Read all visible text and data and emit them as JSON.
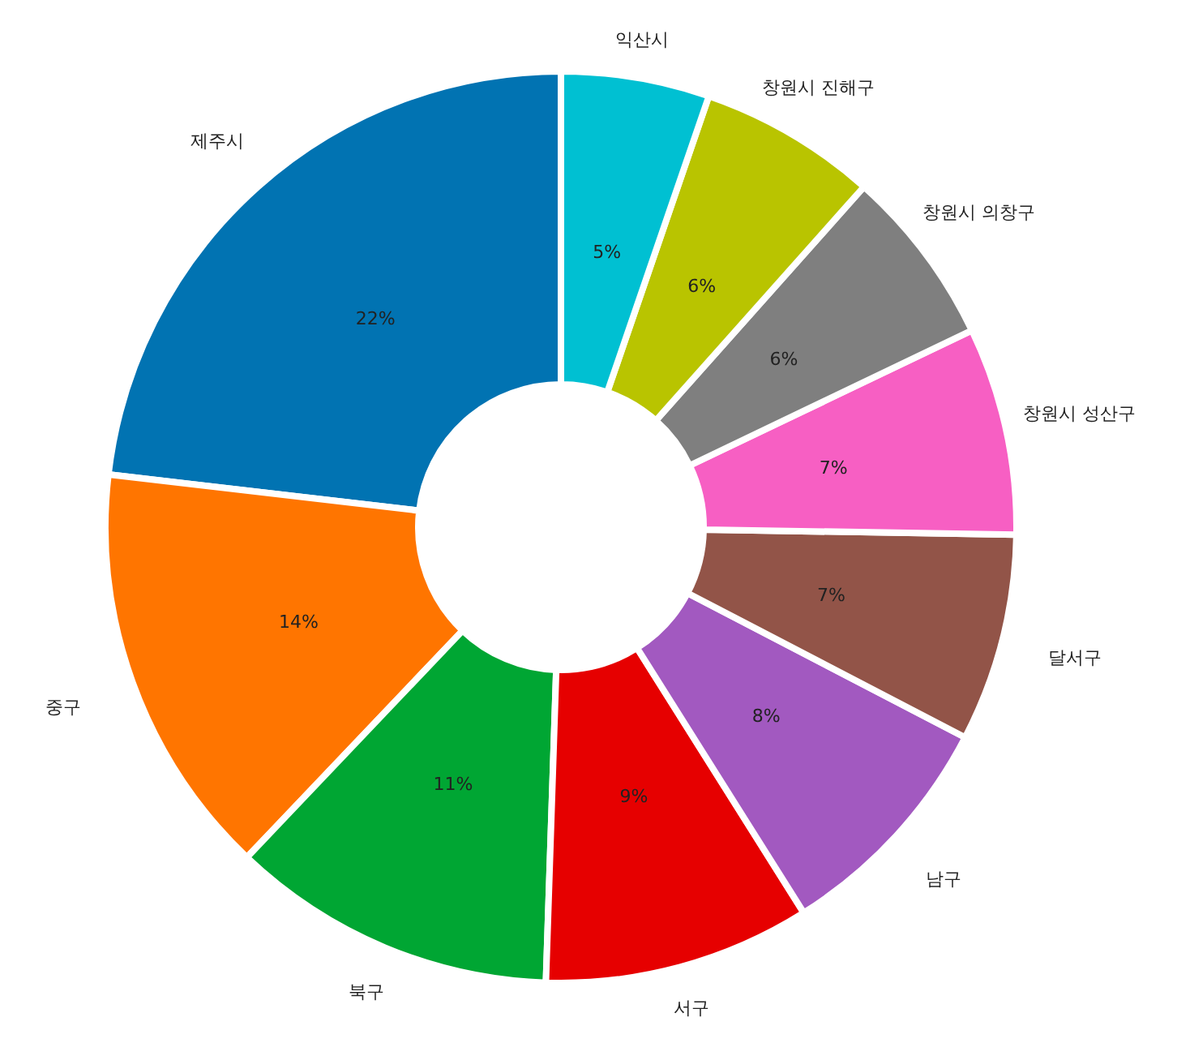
{
  "chart_data": {
    "type": "donut",
    "categories": [
      "제주시",
      "중구",
      "북구",
      "서구",
      "남구",
      "달서구",
      "창원시 성산구",
      "창원시 의창구",
      "창원시 진해구",
      "익산시"
    ],
    "values": [
      22,
      14,
      11,
      9,
      8,
      7,
      7,
      6,
      6,
      5
    ],
    "value_labels": [
      "22%",
      "14%",
      "11%",
      "9%",
      "8%",
      "7%",
      "7%",
      "6%",
      "6%",
      "5%"
    ],
    "colors": [
      "#0173b2",
      "#ff7500",
      "#00a633",
      "#e60000",
      "#a259c0",
      "#925448",
      "#f75fc3",
      "#7f7f7f",
      "#b9c400",
      "#00c0d2"
    ],
    "legend": false
  }
}
